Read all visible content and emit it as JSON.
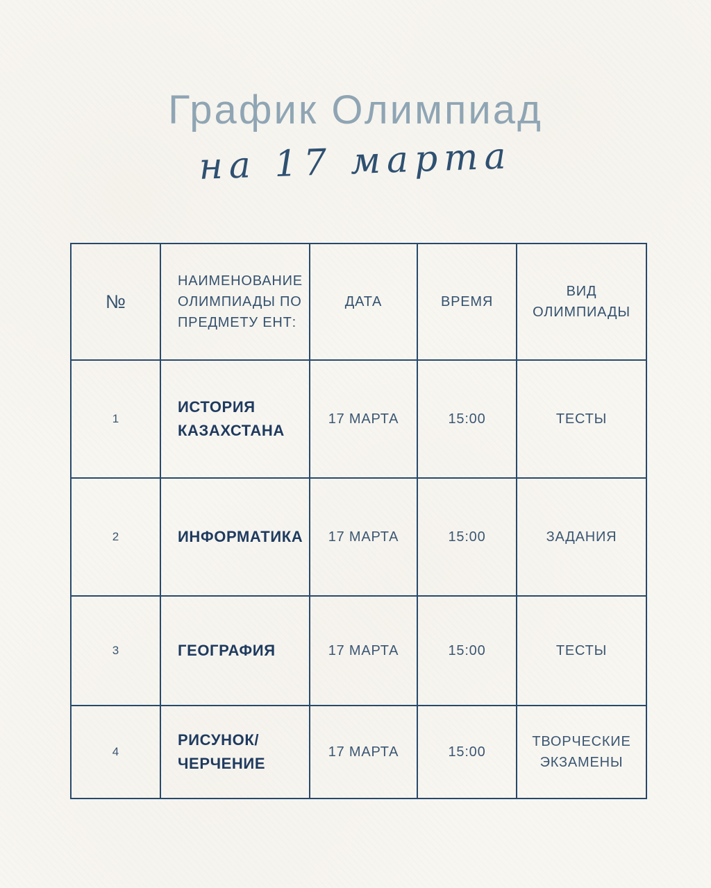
{
  "title": {
    "main": "График Олимпиад",
    "subtitle_script": "на 17 марта"
  },
  "colors": {
    "bg": "#f8f6f1",
    "title_color": "#8fa5b4",
    "script_color": "#2e5071",
    "border_color": "#27496b",
    "header_text": "#33516f",
    "cell_text": "#3a5673",
    "subject_text": "#1e3a5f"
  },
  "table": {
    "headers": {
      "num": "№",
      "name": "НАИМЕНОВАНИЕ ОЛИМПИАДЫ ПО ПРЕДМЕТУ ЕНТ:",
      "date": "ДАТА",
      "time": "ВРЕМЯ",
      "type": "ВИД ОЛИМПИАДЫ"
    },
    "rows": [
      {
        "num": "1",
        "subject_lines": [
          "ИСТОРИЯ",
          "КАЗАХСТАНА"
        ],
        "date": "17 МАРТА",
        "time": "15:00",
        "type": "ТЕСТЫ"
      },
      {
        "num": "2",
        "subject_lines": [
          "ИНФОРМАТИКА"
        ],
        "date": "17 МАРТА",
        "time": "15:00",
        "type": "ЗАДАНИЯ"
      },
      {
        "num": "3",
        "subject_lines": [
          "ГЕОГРАФИЯ"
        ],
        "date": "17 МАРТА",
        "time": "15:00",
        "type": "ТЕСТЫ"
      },
      {
        "num": "4",
        "subject_lines": [
          "РИСУНОК/",
          "ЧЕРЧЕНИЕ"
        ],
        "date": "17 МАРТА",
        "time": "15:00",
        "type": "ТВОРЧЕСКИЕ ЭКЗАМЕНЫ"
      }
    ]
  }
}
